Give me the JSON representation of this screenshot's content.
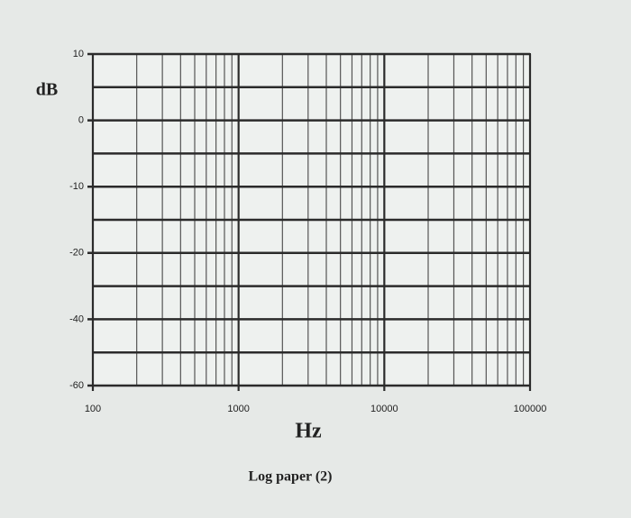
{
  "chart_data": {
    "type": "line",
    "caption": "Log paper (2)",
    "xlabel": "Hz",
    "ylabel": "dB",
    "xscale": "log",
    "xlim": [
      100,
      100000
    ],
    "xticks": [
      100,
      1000,
      10000,
      100000
    ],
    "yticks": [
      10,
      0,
      -10,
      -20,
      -40,
      -60
    ],
    "grid": true,
    "color": "#2b2b2b"
  }
}
